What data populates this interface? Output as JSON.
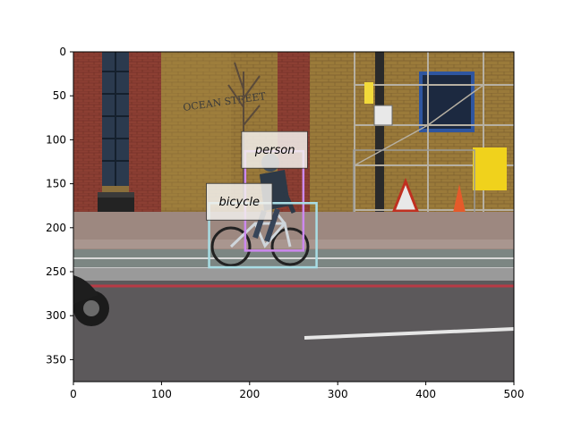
{
  "axes": {
    "x_ticks": [
      "0",
      "100",
      "200",
      "300",
      "400",
      "500"
    ],
    "y_ticks": [
      "0",
      "50",
      "100",
      "150",
      "200",
      "250",
      "300",
      "350"
    ],
    "x_range": [
      0,
      500
    ],
    "y_range": [
      375,
      0
    ]
  },
  "image": {
    "width": 500,
    "height": 375,
    "scene": "street with a cyclist riding past a brick building, scaffolding and a road"
  },
  "detections": [
    {
      "label": "person",
      "color": "#cc88ee",
      "x0": 195,
      "y0": 113,
      "x1": 261,
      "y1": 226
    },
    {
      "label": "bicycle",
      "color": "#a8dde4",
      "x0": 154,
      "y0": 172,
      "x1": 276,
      "y1": 245
    }
  ],
  "building_sign": "OCEAN STREET"
}
